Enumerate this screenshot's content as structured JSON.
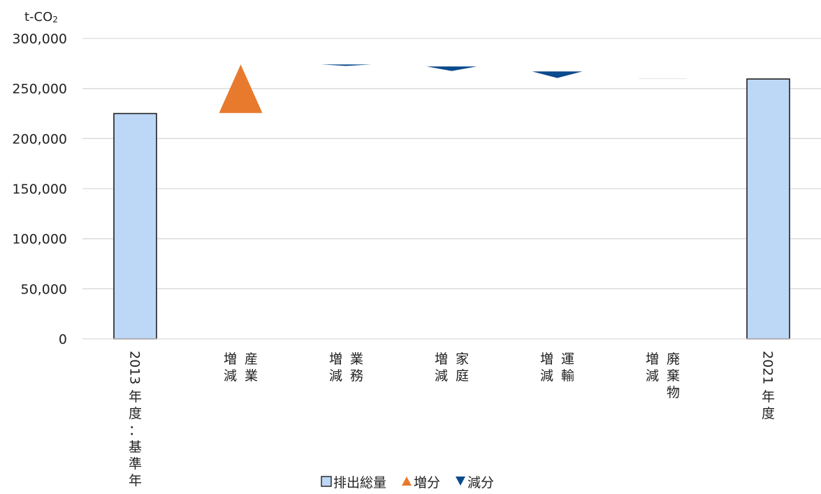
{
  "chart_data": {
    "type": "bar",
    "title": "",
    "ylabel": "t-CO2",
    "ylabel_main": "t-CO",
    "ylabel_sub": "2",
    "ylim": [
      0,
      300000
    ],
    "yticks": [
      0,
      50000,
      100000,
      150000,
      200000,
      250000,
      300000
    ],
    "ytick_labels": [
      "0",
      "50,000",
      "100,000",
      "150,000",
      "200,000",
      "250,000",
      "300,000"
    ],
    "grid": true,
    "legend_position": "bottom",
    "categories": [
      {
        "lines": [
          "2013年度：基準年"
        ]
      },
      {
        "lines": [
          "増減",
          "産業"
        ]
      },
      {
        "lines": [
          "増減",
          "業務"
        ]
      },
      {
        "lines": [
          "増減",
          "家庭"
        ]
      },
      {
        "lines": [
          "増減",
          "運輸"
        ]
      },
      {
        "lines": [
          "増減",
          "廃棄物"
        ]
      },
      {
        "lines": [
          "2021年度"
        ]
      }
    ],
    "series": [
      {
        "name": "排出総量",
        "kind": "total",
        "color": "#BDD7F7",
        "stroke": "#1f1f1f",
        "values": [
          225000,
          null,
          null,
          null,
          null,
          null,
          259500
        ]
      },
      {
        "name": "増分",
        "kind": "increase",
        "color": "#E87A2E",
        "values": [
          null,
          {
            "from": 225500,
            "to": 274000
          },
          null,
          null,
          null,
          null,
          null
        ]
      },
      {
        "name": "減分",
        "kind": "decrease",
        "color": "#0B4A8C",
        "values": [
          null,
          null,
          {
            "from": 274000,
            "to": 272500
          },
          {
            "from": 272000,
            "to": 267500
          },
          {
            "from": 267000,
            "to": 260500
          },
          {
            "from": 259800,
            "to": 259500
          },
          null
        ]
      }
    ]
  },
  "legend": {
    "items": [
      {
        "symbol": "□",
        "label": "排出総量"
      },
      {
        "symbol": "▲",
        "label": "増分"
      },
      {
        "symbol": "▼",
        "label": "減分"
      }
    ]
  }
}
